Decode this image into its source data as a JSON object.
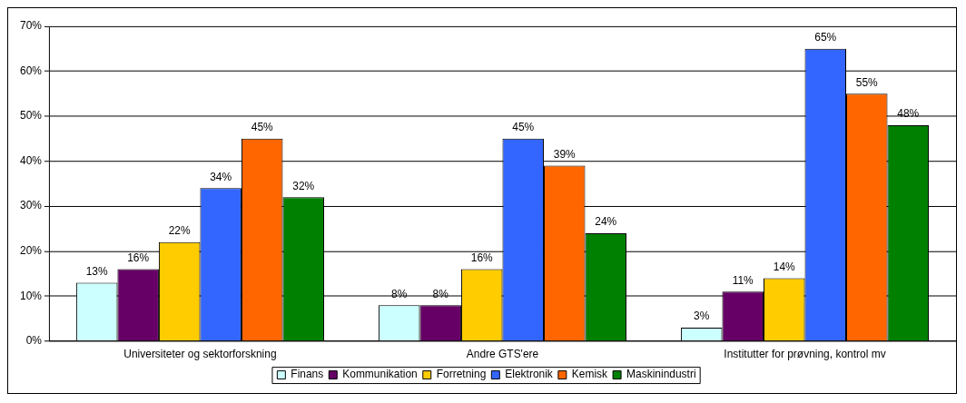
{
  "chart_data": {
    "type": "bar",
    "categories": [
      "Universiteter og sektorforskning",
      "Andre GTS'ere",
      "Institutter for prøvning, kontrol mv"
    ],
    "series": [
      {
        "name": "Finans",
        "color": "#ccffff",
        "values": [
          13,
          8,
          3
        ],
        "value_labels": [
          "13%",
          "8%",
          "3%"
        ]
      },
      {
        "name": "Kommunikation",
        "color": "#660066",
        "values": [
          16,
          8,
          11
        ],
        "value_labels": [
          "16%",
          "8%",
          "11%"
        ]
      },
      {
        "name": "Forretning",
        "color": "#ffcc00",
        "values": [
          22,
          16,
          14
        ],
        "value_labels": [
          "22%",
          "16%",
          "14%"
        ]
      },
      {
        "name": "Elektronik",
        "color": "#3366ff",
        "values": [
          34,
          45,
          65
        ],
        "value_labels": [
          "34%",
          "45%",
          "65%"
        ]
      },
      {
        "name": "Kemisk",
        "color": "#ff6600",
        "values": [
          45,
          39,
          55
        ],
        "value_labels": [
          "45%",
          "39%",
          "55%"
        ]
      },
      {
        "name": "Maskinindustri",
        "color": "#008000",
        "values": [
          32,
          24,
          48
        ],
        "value_labels": [
          "32%",
          "24%",
          "48%"
        ]
      }
    ],
    "ylim": [
      0,
      70
    ],
    "yticks": [
      {
        "value": 0,
        "label": "0%"
      },
      {
        "value": 10,
        "label": "10%"
      },
      {
        "value": 20,
        "label": "20%"
      },
      {
        "value": 30,
        "label": "30%"
      },
      {
        "value": 40,
        "label": "40%"
      },
      {
        "value": 50,
        "label": "50%"
      },
      {
        "value": 60,
        "label": "60%"
      },
      {
        "value": 70,
        "label": "70%"
      }
    ],
    "grid": "y",
    "legend": "bottom"
  }
}
